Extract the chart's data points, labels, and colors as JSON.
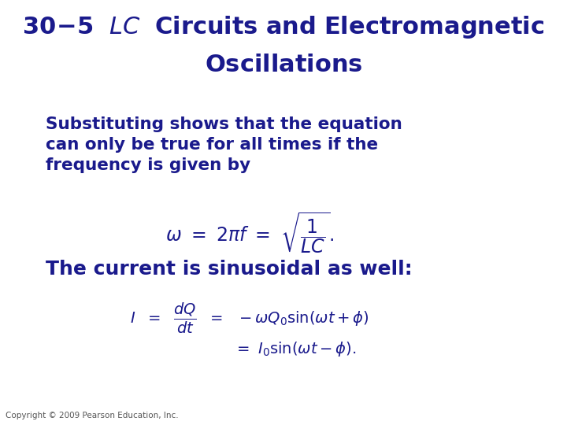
{
  "title_color": "#1a1a8c",
  "body_color": "#1a1a8c",
  "bg_color": "#ffffff",
  "copyright_color": "#555555",
  "title_fontsize": 22,
  "body_fontsize": 15.5,
  "eq1_fontsize": 15,
  "section2_fontsize": 18,
  "eq2_fontsize": 13,
  "copyright_fontsize": 7.5,
  "para1_line1": "Substituting shows that the equation",
  "para1_line2": "can only be true for all times if the",
  "para1_line3": "frequency is given by",
  "section2_title": "The current is sinusoidal as well:",
  "copyright": "Copyright © 2009 Pearson Education, Inc."
}
